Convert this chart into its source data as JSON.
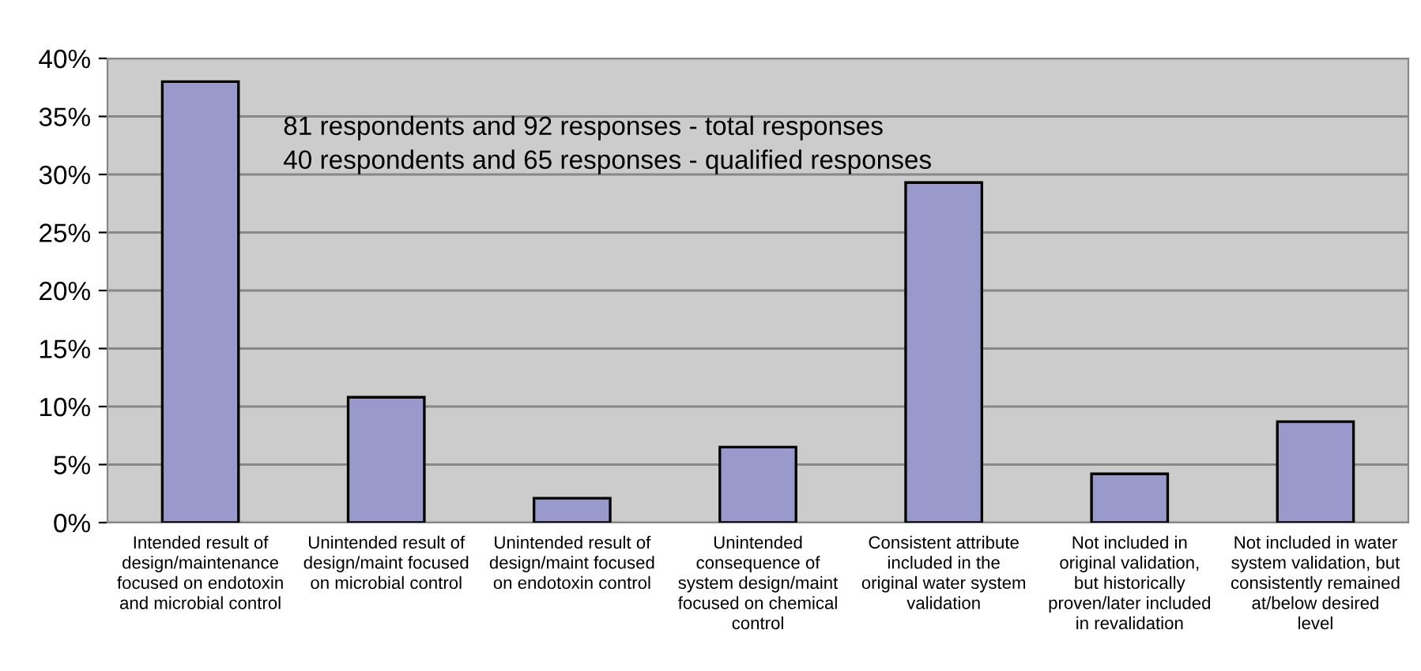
{
  "chart_data": {
    "type": "bar",
    "categories": [
      "Intended result of\ndesign/maintenance\nfocused on endotoxin\nand microbial control",
      "Unintended result of\ndesign/maint focused\non microbial control",
      "Unintended result of\ndesign/maint focused\non endotoxin control",
      "Unintended\nconsequence of\nsystem design/maint\nfocused on chemical\ncontrol",
      "Consistent attribute\nincluded in the\noriginal water system\nvalidation",
      "Not included in\noriginal validation,\nbut historically\nproven/later included\nin revalidation",
      "Not included in water\nsystem validation, but\nconsistently remained\nat/below desired\nlevel"
    ],
    "values": [
      38.0,
      10.8,
      2.1,
      6.5,
      29.3,
      4.2,
      8.7
    ],
    "color": "#9999cc",
    "ylim": [
      0,
      40
    ],
    "yticks": [
      {
        "value": 0,
        "label": "0%"
      },
      {
        "value": 5,
        "label": "5%"
      },
      {
        "value": 10,
        "label": "10%"
      },
      {
        "value": 15,
        "label": "15%"
      },
      {
        "value": 20,
        "label": "20%"
      },
      {
        "value": 25,
        "label": "25%"
      },
      {
        "value": 30,
        "label": "30%"
      },
      {
        "value": 35,
        "label": "35%"
      },
      {
        "value": 40,
        "label": "40%"
      }
    ],
    "grid": "y",
    "annotations": [
      "81 respondents and 92 responses - total responses",
      "40 respondents and 65 responses - qualified responses"
    ]
  }
}
